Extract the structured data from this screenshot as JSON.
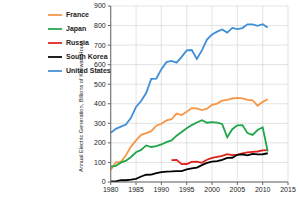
{
  "chart_data": {
    "type": "line",
    "y_label": "Annual Electric Generation, Billions of Kilowatt-Hours",
    "x": [
      1980,
      1981,
      1982,
      1983,
      1984,
      1985,
      1986,
      1987,
      1988,
      1989,
      1990,
      1991,
      1992,
      1993,
      1994,
      1995,
      1996,
      1997,
      1998,
      1999,
      2000,
      2001,
      2002,
      2003,
      2004,
      2005,
      2006,
      2007,
      2008,
      2009,
      2010,
      2011
    ],
    "series": [
      {
        "name": "United States",
        "color": "#3f8fd8",
        "values": [
          251,
          272,
          283,
          294,
          328,
          384,
          414,
          455,
          527,
          529,
          577,
          613,
          619,
          610,
          640,
          673,
          675,
          629,
          673,
          728,
          754,
          769,
          780,
          764,
          788,
          782,
          787,
          806,
          806,
          799,
          807,
          790
        ]
      },
      {
        "name": "France",
        "color": "#f79646",
        "values": [
          61,
          100,
          103,
          137,
          181,
          213,
          241,
          250,
          260,
          288,
          298,
          315,
          321,
          350,
          342,
          359,
          378,
          376,
          368,
          375,
          395,
          401,
          416,
          420,
          427,
          430,
          428,
          420,
          418,
          390,
          410,
          423
        ]
      },
      {
        "name": "Russia",
        "color": "#e0201b",
        "values": [
          null,
          null,
          null,
          null,
          null,
          null,
          null,
          null,
          null,
          null,
          null,
          null,
          112,
          113,
          91,
          92,
          103,
          104,
          98,
          114,
          123,
          129,
          134,
          142,
          137,
          140,
          147,
          152,
          154,
          156,
          162,
          163
        ]
      },
      {
        "name": "Japan",
        "color": "#1fa64a",
        "values": [
          79,
          83,
          99,
          109,
          128,
          152,
          164,
          187,
          179,
          183,
          192,
          204,
          213,
          237,
          256,
          275,
          291,
          304,
          316,
          303,
          306,
          304,
          297,
          229,
          270,
          290,
          291,
          250,
          241,
          266,
          280,
          156
        ]
      },
      {
        "name": "South Korea",
        "color": "#000000",
        "values": [
          3,
          3,
          9,
          9,
          12,
          16,
          28,
          37,
          38,
          45,
          50,
          53,
          54,
          56,
          56,
          64,
          70,
          74,
          86,
          98,
          104,
          107,
          113,
          123,
          124,
          139,
          141,
          136,
          144,
          141,
          142,
          147
        ]
      }
    ],
    "xlim": [
      1980,
      2015
    ],
    "xticks": [
      1980,
      1985,
      1990,
      1995,
      2000,
      2005,
      2010,
      2015
    ],
    "ylim": [
      0,
      900
    ],
    "yticks": [
      0,
      100,
      200,
      300,
      400,
      500,
      600,
      700,
      800,
      900
    ],
    "grid": true,
    "legend": "upper left"
  }
}
